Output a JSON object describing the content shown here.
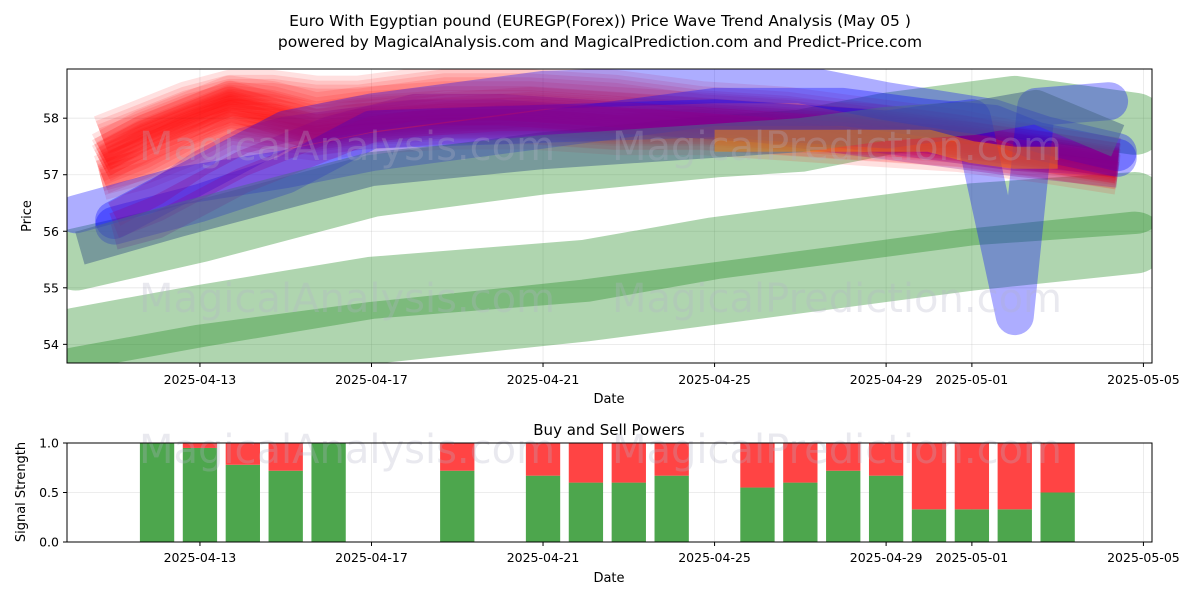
{
  "figure": {
    "title_line1": "Euro With Egyptian pound (EUREGP(Forex)) Price Wave Trend Analysis (May 05 )",
    "title_line2": "powered by MagicalAnalysis.com and MagicalPrediction.com and Predict-Price.com",
    "watermark_text_1": "MagicalAnalysis.com",
    "watermark_text_2": "MagicalPrediction.com"
  },
  "chart_data": [
    {
      "type": "line",
      "title": "",
      "xlabel": "Date",
      "ylabel": "Price",
      "x_ticks": [
        "2025-04-13",
        "2025-04-17",
        "2025-04-21",
        "2025-04-25",
        "2025-04-29",
        "2025-05-01",
        "2025-05-05"
      ],
      "y_ticks": [
        54,
        55,
        56,
        57,
        58
      ],
      "xlim": [
        "2025-04-09.9",
        "2025-05-05.2"
      ],
      "ylim": [
        53.67,
        58.87
      ],
      "grid": true,
      "series": [
        {
          "group": "red",
          "color": "#ff0000",
          "x": [
            "2025-04-10.7",
            "2025-04-11.7",
            "2025-04-12.7",
            "2025-04-13.7",
            "2025-04-14.7",
            "2025-04-15.7",
            "2025-04-16.7",
            "2025-04-18.7",
            "2025-04-20.7",
            "2025-04-22.7",
            "2025-04-24.7",
            "2025-04-26.7",
            "2025-04-28.7",
            "2025-04-30.7",
            "2025-05-02.7",
            "2025-05-04.4"
          ],
          "y": [
            57.2,
            57.6,
            57.9,
            58.2,
            58.0,
            57.8,
            57.9,
            58.0,
            58.0,
            57.9,
            57.9,
            57.8,
            57.7,
            57.6,
            57.4,
            57.2
          ]
        },
        {
          "group": "red",
          "color": "#ff0000",
          "x": [
            "2025-04-10.7",
            "2025-04-11.7",
            "2025-04-12.7",
            "2025-04-13.7",
            "2025-04-14.7",
            "2025-04-15.7",
            "2025-04-16.7",
            "2025-04-18.7",
            "2025-04-20.7",
            "2025-04-22.7",
            "2025-04-24.7",
            "2025-04-26.7",
            "2025-04-28.7",
            "2025-04-30.7",
            "2025-05-02.7",
            "2025-05-04.4"
          ],
          "y": [
            57.4,
            57.8,
            58.1,
            58.4,
            58.3,
            58.1,
            58.2,
            58.3,
            58.3,
            58.2,
            58.1,
            58.0,
            57.9,
            57.7,
            57.5,
            57.3
          ]
        },
        {
          "group": "red",
          "color": "#ff0000",
          "x": [
            "2025-04-10.7",
            "2025-04-11.7",
            "2025-04-12.7",
            "2025-04-13.7",
            "2025-04-14.7",
            "2025-04-15.7",
            "2025-04-16.7",
            "2025-04-18.7",
            "2025-04-20.7",
            "2025-04-22.7",
            "2025-04-24.7",
            "2025-04-26.7",
            "2025-04-28.7",
            "2025-04-30.7",
            "2025-05-02.7",
            "2025-05-04.4"
          ],
          "y": [
            57.0,
            57.3,
            57.7,
            58.0,
            57.9,
            57.7,
            57.8,
            57.9,
            57.9,
            57.8,
            57.8,
            57.7,
            57.6,
            57.5,
            57.3,
            57.1
          ]
        },
        {
          "group": "red",
          "color": "#ff0000",
          "x": [
            "2025-04-10.7",
            "2025-04-11.7",
            "2025-04-12.7",
            "2025-04-13.7",
            "2025-04-14.7",
            "2025-04-15.7",
            "2025-04-16.7",
            "2025-04-18.7",
            "2025-04-20.7",
            "2025-04-22.7",
            "2025-04-24.7",
            "2025-04-26.7",
            "2025-04-28.7",
            "2025-04-30.7",
            "2025-05-02.7",
            "2025-05-04.4"
          ],
          "y": [
            57.7,
            58.0,
            58.3,
            58.5,
            58.5,
            58.4,
            58.4,
            58.6,
            58.6,
            58.5,
            58.3,
            58.2,
            58.0,
            57.8,
            57.5,
            57.3
          ]
        },
        {
          "group": "red",
          "color": "#ff0000",
          "x": [
            "2025-04-10.7",
            "2025-04-11.7",
            "2025-04-12.7",
            "2025-04-13.7",
            "2025-04-14.7",
            "2025-04-15.7",
            "2025-04-16.7",
            "2025-04-18.7",
            "2025-04-20.7",
            "2025-04-22.7",
            "2025-04-24.7",
            "2025-04-26.7",
            "2025-04-28.7",
            "2025-04-30.7",
            "2025-05-02.7",
            "2025-05-04.4"
          ],
          "y": [
            56.9,
            57.1,
            57.4,
            57.8,
            57.7,
            57.6,
            57.7,
            57.8,
            57.8,
            57.7,
            57.7,
            57.6,
            57.5,
            57.4,
            57.2,
            57.0
          ]
        },
        {
          "group": "red",
          "color": "#ff0000",
          "x": [
            "2025-04-10.7",
            "2025-04-11.7",
            "2025-04-12.7",
            "2025-04-13.7",
            "2025-04-14.7",
            "2025-04-15.7",
            "2025-04-16.7",
            "2025-04-18.7",
            "2025-04-20.7",
            "2025-04-22.7",
            "2025-04-24.7",
            "2025-04-26.7",
            "2025-04-28.7",
            "2025-04-30.7",
            "2025-05-02.7",
            "2025-05-04.4"
          ],
          "y": [
            57.3,
            57.7,
            58.0,
            58.3,
            58.1,
            57.9,
            58.0,
            58.1,
            58.2,
            58.1,
            58.0,
            57.9,
            57.8,
            57.6,
            57.4,
            57.2
          ]
        },
        {
          "group": "blue",
          "color": "#0000ff",
          "x": [
            "2025-04-10.1",
            "2025-04-12.5",
            "2025-04-15.0",
            "2025-04-17.0",
            "2025-04-21.0",
            "2025-04-25.0",
            "2025-04-28.0",
            "2025-04-30.0",
            "2025-05-01.5",
            "2025-05-02.5",
            "2025-05-04.4"
          ],
          "y": [
            56.3,
            56.8,
            57.1,
            57.4,
            57.8,
            58.2,
            58.2,
            58.0,
            57.9,
            57.6,
            57.3
          ]
        },
        {
          "group": "blue",
          "color": "#0000ff",
          "x": [
            "2025-04-11.0",
            "2025-04-13.0",
            "2025-04-15.0",
            "2025-04-17.0",
            "2025-04-21.0",
            "2025-04-25.0",
            "2025-04-27.0",
            "2025-04-29.0",
            "2025-05-01.5",
            "2025-05-02.7",
            "2025-05-04.4"
          ],
          "y": [
            56.2,
            57.0,
            57.8,
            58.1,
            58.5,
            58.6,
            58.6,
            58.3,
            58.0,
            57.7,
            57.4
          ]
        },
        {
          "group": "blue",
          "color": "#0000ff",
          "x": [
            "2025-04-11.0",
            "2025-04-13.0",
            "2025-04-15.0",
            "2025-04-17.0",
            "2025-04-21.0",
            "2025-04-25.0",
            "2025-04-29.0",
            "2025-05-01.0",
            "2025-05-02.0",
            "2025-05-02.5",
            "2025-05-04.2"
          ],
          "y": [
            56.1,
            56.5,
            57.0,
            57.8,
            57.9,
            58.0,
            57.8,
            58.0,
            54.5,
            58.2,
            58.3
          ]
        },
        {
          "group": "purple",
          "color": "#8b008b",
          "x": [
            "2025-04-11.0",
            "2025-04-12.0",
            "2025-04-13.0",
            "2025-04-14.0",
            "2025-04-15.0",
            "2025-04-16.0",
            "2025-04-17.0",
            "2025-04-18.0",
            "2025-04-20.0",
            "2025-04-22.0",
            "2025-04-24.0",
            "2025-04-26.0",
            "2025-04-28.0",
            "2025-04-30.0",
            "2025-05-02.0",
            "2025-05-04.4"
          ],
          "y": [
            56.1,
            56.4,
            56.8,
            57.2,
            57.5,
            57.8,
            58.0,
            58.1,
            58.1,
            58.0,
            57.9,
            57.8,
            57.7,
            57.5,
            57.3,
            57.2
          ]
        },
        {
          "group": "purple",
          "color": "#8b008b",
          "x": [
            "2025-04-11.0",
            "2025-04-12.0",
            "2025-04-13.0",
            "2025-04-14.0",
            "2025-04-15.0",
            "2025-04-16.0",
            "2025-04-17.0",
            "2025-04-18.0",
            "2025-04-20.0",
            "2025-04-22.0",
            "2025-04-24.0",
            "2025-04-26.0",
            "2025-04-28.0",
            "2025-04-30.0",
            "2025-05-02.0",
            "2025-05-04.4"
          ],
          "y": [
            56.3,
            56.7,
            57.2,
            57.6,
            57.8,
            57.9,
            58.0,
            58.2,
            58.2,
            58.1,
            58.0,
            57.9,
            57.8,
            57.6,
            57.4,
            57.2
          ]
        },
        {
          "group": "purple",
          "color": "#8b008b",
          "x": [
            "2025-04-11.0",
            "2025-04-12.0",
            "2025-04-13.0",
            "2025-04-14.0",
            "2025-04-15.0",
            "2025-04-16.0",
            "2025-04-17.0",
            "2025-04-18.0",
            "2025-04-20.0",
            "2025-04-22.0",
            "2025-04-24.0",
            "2025-04-26.0",
            "2025-04-28.0",
            "2025-04-30.0",
            "2025-05-02.0",
            "2025-05-04.4"
          ],
          "y": [
            55.9,
            56.1,
            56.5,
            56.9,
            57.2,
            57.5,
            57.8,
            57.9,
            58.0,
            58.0,
            57.9,
            57.8,
            57.6,
            57.4,
            57.2,
            57.0
          ]
        },
        {
          "group": "green",
          "color": "#228b22",
          "x": [
            "2025-04-10.1",
            "2025-04-13.0",
            "2025-04-17.0",
            "2025-04-21.0",
            "2025-04-25.0",
            "2025-04-27.0",
            "2025-04-29.0",
            "2025-05-01.0",
            "2025-05-02.0",
            "2025-05-04.8"
          ],
          "y": [
            55.5,
            56.0,
            56.8,
            57.2,
            57.5,
            57.6,
            57.9,
            58.1,
            58.2,
            57.9
          ]
        },
        {
          "group": "green",
          "color": "#228b22",
          "x": [
            "2025-04-10.1",
            "2025-04-13.0",
            "2025-04-17.0",
            "2025-04-22.0",
            "2025-04-25.0",
            "2025-04-29.0",
            "2025-05-01.0",
            "2025-05-04.8"
          ],
          "y": [
            54.1,
            54.5,
            55.0,
            55.3,
            55.7,
            56.1,
            56.3,
            56.5
          ]
        },
        {
          "group": "green",
          "color": "#228b22",
          "x": [
            "2025-04-10.1",
            "2025-04-13.0",
            "2025-04-17.0",
            "2025-04-22.0",
            "2025-04-25.0",
            "2025-04-29.0",
            "2025-05-01.0",
            "2025-05-04.8"
          ],
          "y": [
            53.4,
            53.8,
            54.2,
            54.6,
            54.9,
            55.3,
            55.5,
            55.8
          ]
        },
        {
          "group": "slate",
          "color": "#4a6a8a",
          "x": [
            "2025-04-10.2",
            "2025-04-12.5",
            "2025-04-15.0",
            "2025-04-17.0",
            "2025-04-21.0",
            "2025-04-25.0",
            "2025-04-27.0",
            "2025-04-29.0",
            "2025-05-01.0",
            "2025-05-02.5",
            "2025-05-04.4"
          ],
          "y": [
            55.7,
            56.2,
            56.7,
            57.1,
            57.4,
            57.6,
            57.7,
            57.9,
            58.0,
            58.2,
            57.6
          ]
        },
        {
          "group": "orange",
          "color": "#ff8c00",
          "x": [
            "2025-04-25.0",
            "2025-04-28.0",
            "2025-04-30.0",
            "2025-05-01.0",
            "2025-05-02.0",
            "2025-05-03.0"
          ],
          "y": [
            57.6,
            57.6,
            57.6,
            57.4,
            57.3,
            57.3
          ]
        }
      ]
    },
    {
      "type": "bar",
      "title": "Buy and Sell Powers",
      "xlabel": "Date",
      "ylabel": "Signal Strength",
      "x_ticks": [
        "2025-04-13",
        "2025-04-17",
        "2025-04-21",
        "2025-04-25",
        "2025-04-29",
        "2025-05-01",
        "2025-05-05"
      ],
      "y_ticks": [
        "0.0",
        "0.5",
        "1.0"
      ],
      "xlim": [
        "2025-04-09.9",
        "2025-05-05.2"
      ],
      "ylim": [
        0,
        1
      ],
      "grid": true,
      "series": [
        {
          "name": "buy",
          "color": "#4da64d"
        },
        {
          "name": "sell",
          "color": "#ff4444"
        }
      ],
      "x": [
        "2025-04-12",
        "2025-04-13",
        "2025-04-14",
        "2025-04-15",
        "2025-04-16",
        "2025-04-19",
        "2025-04-21",
        "2025-04-22",
        "2025-04-23",
        "2025-04-24",
        "2025-04-26",
        "2025-04-27",
        "2025-04-28",
        "2025-04-29",
        "2025-04-30",
        "2025-05-01",
        "2025-05-02",
        "2025-05-03"
      ],
      "buy": [
        1.0,
        0.95,
        0.78,
        0.72,
        1.0,
        0.72,
        0.67,
        0.6,
        0.6,
        0.67,
        0.55,
        0.6,
        0.72,
        0.67,
        0.33,
        0.33,
        0.33,
        0.5
      ]
    }
  ]
}
